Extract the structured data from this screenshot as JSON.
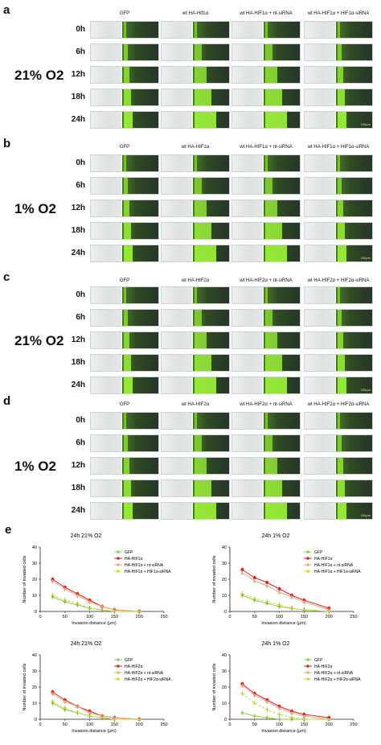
{
  "panels": [
    {
      "letter": "a",
      "condition": "21% O2",
      "columns": [
        "GFP",
        "wt HA-Hif1α",
        "wt HA-HIF1α + nt-siRNA",
        "wt HA-HIF1α + HIF1α-siRNA"
      ],
      "scale_bar": "100μm"
    },
    {
      "letter": "b",
      "condition": "1% O2",
      "columns": [
        "GFP",
        "wt HA-HIF1α",
        "wt HA-HIF1α + nt-siRNA",
        "wt HA-HIF1α + HIF1α-siRNA"
      ],
      "scale_bar": "100μm"
    },
    {
      "letter": "c",
      "condition": "21% O2",
      "columns": [
        "GFP",
        "wt HA-HIF2α",
        "wt HA-HIF2α + nt-siRNA",
        "wt HA-HIF2α + HIF2α-siRNA"
      ],
      "scale_bar": "100μm"
    },
    {
      "letter": "d",
      "condition": "1% O2",
      "columns": [
        "GFP",
        "wt HA-HIF2α",
        "wt HA-HIF2α + nt-siRNA",
        "wt HA-HIF2α + HIF2α-siRNA"
      ],
      "scale_bar": "100μm"
    }
  ],
  "timepoints": [
    "0h",
    "6h",
    "12h",
    "18h",
    "24h"
  ],
  "panel_e_letter": "e",
  "chart_data": [
    {
      "type": "line",
      "title": "24h 21% O2",
      "xlabel": "Invasion distance (μm)",
      "ylabel": "Number of invaded cells",
      "xlim": [
        0,
        250
      ],
      "ylim": [
        0,
        40
      ],
      "xticks": [
        0,
        50,
        100,
        150,
        200,
        250
      ],
      "yticks": [
        0,
        10,
        20,
        30,
        40
      ],
      "x": [
        25,
        50,
        75,
        100,
        125,
        150,
        200
      ],
      "series": [
        {
          "name": "GFP",
          "color": "#8fd14f",
          "marker": "diamond",
          "values": [
            9,
            6,
            4,
            2,
            1,
            0,
            0
          ]
        },
        {
          "name": "HA-HIF1α",
          "color": "#d62728",
          "marker": "circle",
          "values": [
            20,
            15,
            11,
            7,
            3,
            1,
            0
          ]
        },
        {
          "name": "HA-HIF1α + nt-siRNA",
          "color": "#f4a582",
          "marker": "triangle",
          "values": [
            19,
            14,
            10,
            6,
            3,
            1,
            0
          ]
        },
        {
          "name": "HA-HIF1α + HIF1α-siRNA",
          "color": "#c8e020",
          "marker": "dash",
          "values": [
            10,
            7,
            5,
            2,
            1,
            0,
            0
          ]
        }
      ]
    },
    {
      "type": "line",
      "title": "24h 1% O2",
      "xlabel": "Invasion distance (μm)",
      "ylabel": "Number of invaded cells",
      "xlim": [
        0,
        250
      ],
      "ylim": [
        0,
        40
      ],
      "xticks": [
        0,
        50,
        100,
        150,
        200,
        250
      ],
      "yticks": [
        0,
        10,
        20,
        30,
        40
      ],
      "x": [
        25,
        50,
        75,
        100,
        125,
        150,
        200
      ],
      "series": [
        {
          "name": "GFP",
          "color": "#8fd14f",
          "marker": "diamond",
          "values": [
            10,
            7,
            5,
            3,
            2,
            1,
            0
          ]
        },
        {
          "name": "HA-HIF1α",
          "color": "#d62728",
          "marker": "circle",
          "values": [
            26,
            21,
            18,
            14,
            10,
            7,
            2
          ]
        },
        {
          "name": "HA-HIF1α + nt-siRNA",
          "color": "#f4a582",
          "marker": "triangle",
          "values": [
            24,
            19,
            16,
            12,
            9,
            6,
            1
          ]
        },
        {
          "name": "HA-HIF1α + HIF1α-siRNA",
          "color": "#c8e020",
          "marker": "dash",
          "values": [
            11,
            8,
            6,
            4,
            2,
            1,
            0
          ]
        }
      ]
    },
    {
      "type": "line",
      "title": "24h 21% O2",
      "xlabel": "Invasion distance (μm)",
      "ylabel": "Number of invaded cells",
      "xlim": [
        0,
        250
      ],
      "ylim": [
        0,
        40
      ],
      "xticks": [
        0,
        50,
        100,
        150,
        200,
        250
      ],
      "yticks": [
        0,
        10,
        20,
        30,
        40
      ],
      "x": [
        25,
        50,
        75,
        100,
        125,
        150,
        200
      ],
      "series": [
        {
          "name": "GFP",
          "color": "#8fd14f",
          "marker": "diamond",
          "values": [
            10,
            6,
            4,
            2,
            1,
            0,
            0
          ]
        },
        {
          "name": "HA-HIF2α",
          "color": "#d62728",
          "marker": "circle",
          "values": [
            17,
            12,
            8,
            5,
            2,
            1,
            0
          ]
        },
        {
          "name": "HA-HIF2α + nt-siRNA",
          "color": "#f4a582",
          "marker": "triangle",
          "values": [
            16,
            11,
            8,
            4,
            2,
            1,
            0
          ]
        },
        {
          "name": "HA-HIF2α + HIF2α-siRNA",
          "color": "#c8e020",
          "marker": "dash",
          "values": [
            11,
            7,
            4,
            2,
            1,
            0,
            0
          ]
        }
      ]
    },
    {
      "type": "line",
      "title": "24h 1% O2",
      "xlabel": "Invasion distance (μm)",
      "ylabel": "Number of invaded cells",
      "xlim": [
        0,
        250
      ],
      "ylim": [
        0,
        40
      ],
      "xticks": [
        0,
        50,
        100,
        150,
        200,
        250
      ],
      "yticks": [
        0,
        10,
        20,
        30,
        40
      ],
      "x": [
        25,
        50,
        75,
        100,
        125,
        150,
        200
      ],
      "series": [
        {
          "name": "GFP",
          "color": "#8fd14f",
          "marker": "diamond",
          "values": [
            4,
            2,
            1,
            0,
            0,
            0,
            0
          ]
        },
        {
          "name": "HA-HIF2α",
          "color": "#d62728",
          "marker": "circle",
          "values": [
            22,
            16,
            12,
            8,
            5,
            3,
            1
          ]
        },
        {
          "name": "HA-HIF2α + nt-siRNA",
          "color": "#f4a582",
          "marker": "triangle",
          "values": [
            21,
            15,
            11,
            7,
            4,
            2,
            0
          ]
        },
        {
          "name": "HA-HIF2α + HIF2α-siRNA",
          "color": "#c8e020",
          "marker": "dash",
          "values": [
            16,
            10,
            6,
            3,
            1,
            0,
            0
          ]
        }
      ]
    }
  ]
}
